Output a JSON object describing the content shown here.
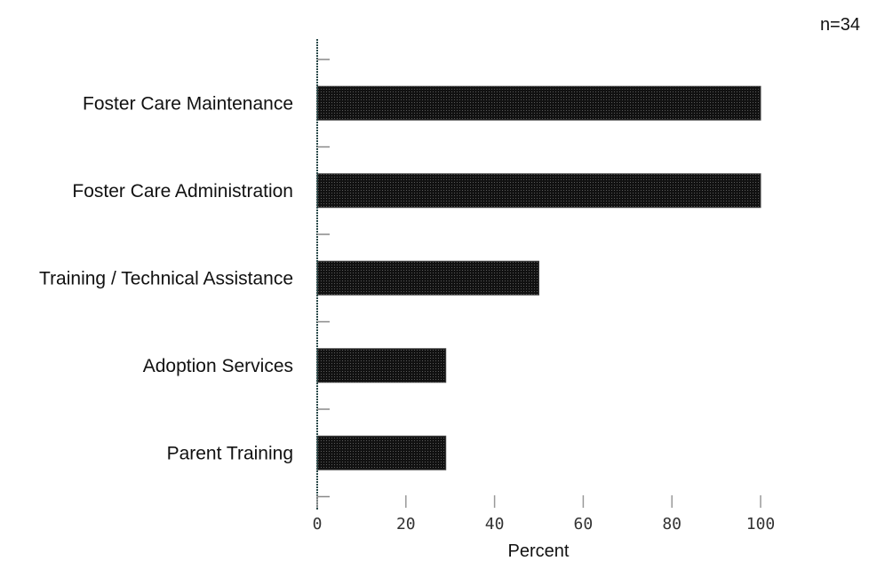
{
  "chart_data": {
    "type": "bar",
    "orientation": "horizontal",
    "categories": [
      "Foster Care Maintenance",
      "Foster Care Administration",
      "Training / Technical Assistance",
      "Adoption Services",
      "Parent Training"
    ],
    "values": [
      100,
      100,
      50,
      29,
      29
    ],
    "xlabel": "Percent",
    "ylabel": "",
    "xlim": [
      0,
      100
    ],
    "xticks": [
      "0",
      "20",
      "40",
      "60",
      "80",
      "100"
    ],
    "sample_note": "n=34",
    "bar_color": "#1a1a1a",
    "grid": false,
    "legend": "none"
  }
}
